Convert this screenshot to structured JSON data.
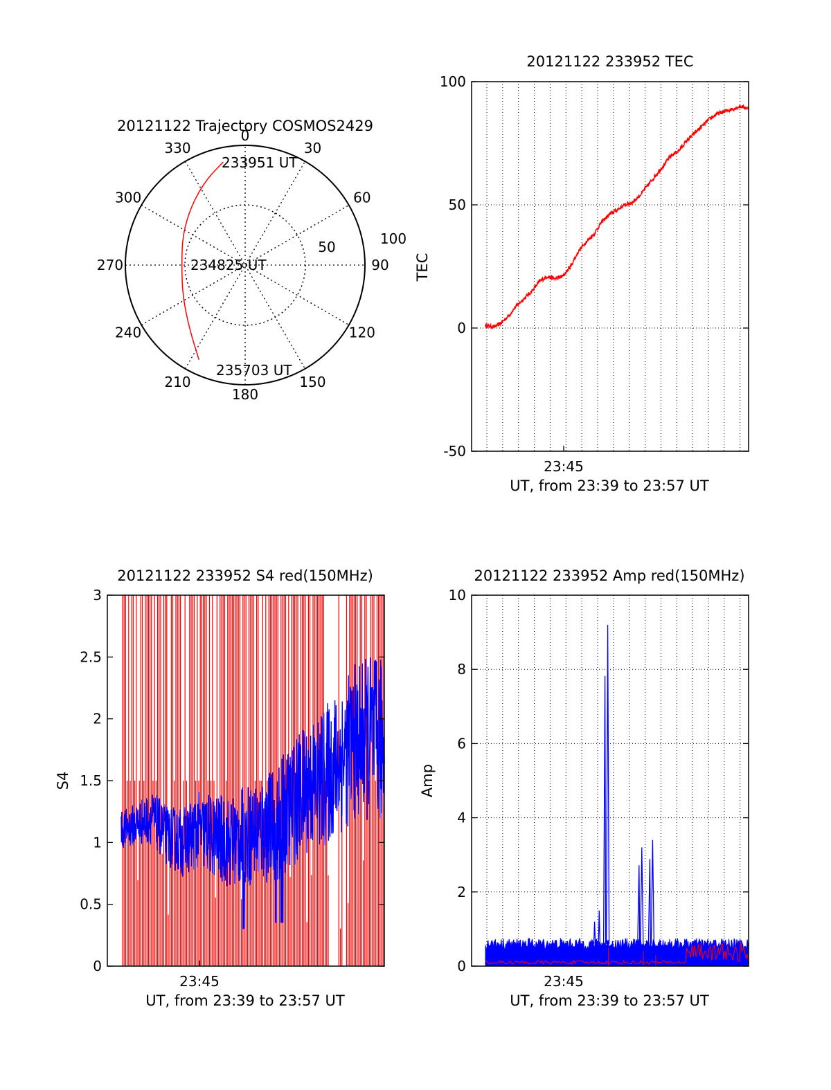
{
  "chart_data": [
    {
      "type": "polar",
      "title": "20121122 Trajectory COSMOS2429",
      "azimuth_labels": [
        "0",
        "30",
        "60",
        "90",
        "120",
        "150",
        "180",
        "210",
        "240",
        "270",
        "300",
        "330"
      ],
      "radial_labels": [
        "50",
        "100"
      ],
      "track_labels": {
        "start": "233951 UT",
        "middle": "234825 UT",
        "end": "235703 UT"
      },
      "track_color": "#ff0000",
      "track": [
        {
          "az": 348,
          "r": 88
        },
        {
          "az": 335,
          "r": 78
        },
        {
          "az": 318,
          "r": 67
        },
        {
          "az": 296,
          "r": 58
        },
        {
          "az": 270,
          "r": 53
        },
        {
          "az": 244,
          "r": 58
        },
        {
          "az": 222,
          "r": 70
        },
        {
          "az": 206,
          "r": 88
        }
      ]
    },
    {
      "type": "line",
      "title": "20121122 233952 TEC",
      "ylabel": "TEC",
      "xlabel": "UT, from 23:39 to 23:57 UT",
      "xtick_labels": [
        "23:45"
      ],
      "yticks": [
        "100",
        "50",
        "0",
        "-50"
      ],
      "ylim": [
        -50,
        100
      ],
      "grid": true,
      "series": [
        {
          "color": "#ff0000",
          "x": [
            0,
            0.6,
            1.0,
            1.5,
            2.0,
            2.5,
            3.0,
            3.5,
            4.0,
            4.5,
            5.0,
            5.5,
            6.0,
            6.5,
            7.0,
            7.5,
            8.0,
            8.5,
            9.0,
            9.5,
            10.0,
            10.5,
            11.0,
            11.5,
            12.0,
            12.5,
            13.0,
            13.5,
            14.0,
            14.5,
            15.0,
            15.5,
            16.0,
            16.5,
            17.0
          ],
          "y": [
            1,
            0.5,
            2,
            5,
            9,
            12,
            15,
            19,
            21,
            20,
            21,
            25,
            31,
            35,
            38,
            43,
            46,
            48,
            50,
            51,
            54,
            58,
            62,
            66,
            70,
            72,
            76,
            79,
            82,
            85,
            87,
            88,
            89,
            90,
            89
          ]
        }
      ]
    },
    {
      "type": "line",
      "title": "20121122 233952 S4 red(150MHz)",
      "ylabel": "S4",
      "xlabel": "UT, from 23:39 to 23:57 UT",
      "xtick_labels": [
        "23:45"
      ],
      "yticks": [
        "3",
        "2.5",
        "2",
        "1.5",
        "1",
        "0.5",
        "0"
      ],
      "ylim": [
        0,
        3
      ],
      "series": [
        {
          "color": "#ff0000",
          "x": [
            0,
            17
          ],
          "y": [
            0,
            3
          ]
        },
        {
          "color": "#0000ff",
          "x": [
            0,
            1,
            2,
            3,
            4,
            5,
            6,
            7,
            8,
            9,
            10,
            11,
            12,
            13,
            14,
            15,
            16,
            17
          ],
          "y": [
            1.1,
            1.15,
            1.2,
            1.05,
            1.0,
            1.1,
            1.05,
            1.0,
            1.05,
            1.1,
            1.15,
            1.3,
            1.45,
            1.5,
            1.65,
            1.8,
            1.85,
            1.8
          ]
        }
      ]
    },
    {
      "type": "line",
      "title": "20121122 233952 Amp red(150MHz)",
      "ylabel": "Amp",
      "xlabel": "UT, from 23:39 to 23:57 UT",
      "xtick_labels": [
        "23:45"
      ],
      "yticks": [
        "10",
        "8",
        "6",
        "4",
        "2",
        "0"
      ],
      "ylim": [
        0,
        10
      ],
      "grid": true,
      "series": [
        {
          "color": "#0000ff",
          "x": [
            0,
            7.6,
            7.9,
            8.0,
            10.1,
            10.3,
            10.8,
            11.1,
            17
          ],
          "y": [
            0.5,
            0.6,
            9.2,
            0.5,
            3.2,
            0.4,
            3.4,
            0.5,
            0.6
          ]
        },
        {
          "color": "#ff0000",
          "x": [
            0,
            17
          ],
          "y": [
            0.1,
            0.6
          ]
        }
      ]
    }
  ]
}
